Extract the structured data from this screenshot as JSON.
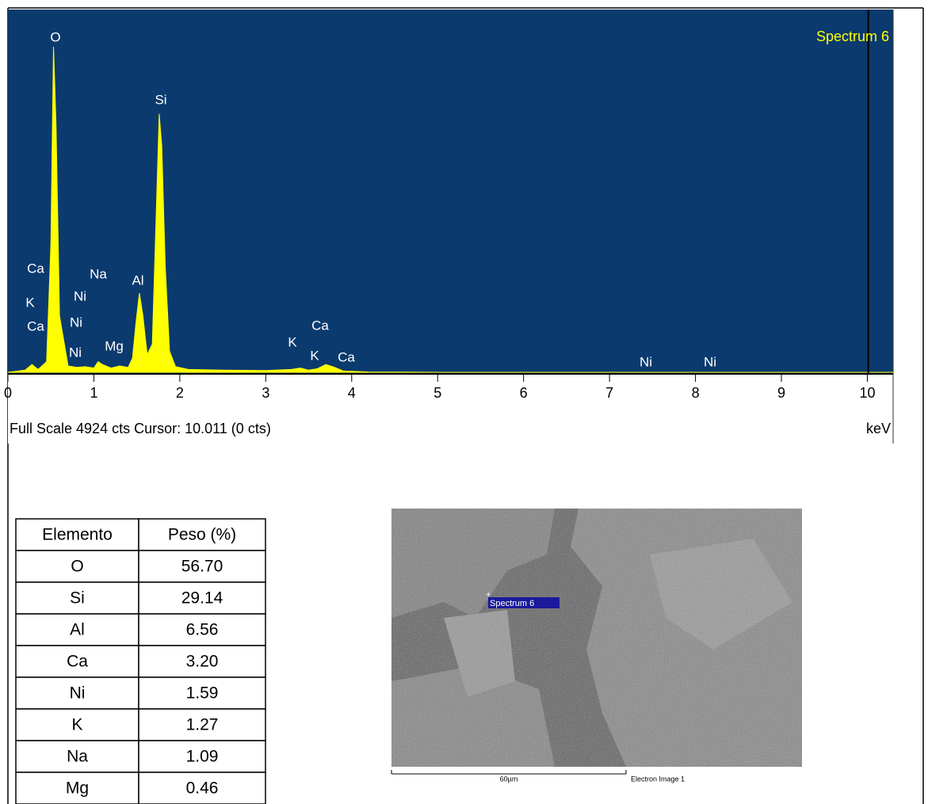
{
  "chart_data": {
    "type": "area",
    "title": "Spectrum 6",
    "xlabel": "keV",
    "footer": "Full Scale 4924 cts Cursor: 10.011  (0 cts)",
    "cursor": 10.011,
    "color": "#ffff00",
    "background": "#0b3a6e",
    "x": [
      0,
      0.2,
      0.28,
      0.35,
      0.45,
      0.5,
      0.53,
      0.56,
      0.6,
      0.7,
      0.8,
      0.9,
      1.0,
      1.05,
      1.1,
      1.2,
      1.3,
      1.4,
      1.45,
      1.49,
      1.53,
      1.57,
      1.62,
      1.68,
      1.72,
      1.76,
      1.79,
      1.83,
      1.88,
      1.95,
      2.1,
      2.5,
      3.0,
      3.3,
      3.4,
      3.5,
      3.6,
      3.7,
      3.8,
      3.9,
      4.0,
      4.2,
      5,
      6,
      7,
      8,
      9,
      10,
      10.3
    ],
    "values": [
      0,
      30,
      110,
      40,
      150,
      1800,
      4600,
      3500,
      800,
      90,
      70,
      80,
      60,
      150,
      110,
      60,
      90,
      70,
      200,
      700,
      1120,
      800,
      250,
      400,
      2000,
      3650,
      3200,
      1500,
      300,
      80,
      40,
      30,
      25,
      40,
      60,
      30,
      50,
      110,
      70,
      20,
      15,
      5,
      0,
      0,
      0,
      0,
      0,
      0,
      0
    ],
    "xlim": [
      0,
      10.3
    ],
    "ylim": [
      0,
      4924
    ],
    "xticks": [
      0,
      1,
      2,
      3,
      4,
      5,
      6,
      7,
      8,
      9,
      10
    ],
    "annotations": [
      "O",
      "Si",
      "Ca",
      "Na",
      "Al",
      "K",
      "Ni",
      "Ni",
      "Ca",
      "Ni",
      "Mg",
      "K",
      "Ca",
      "K",
      "Ca",
      "Ni",
      "Ni"
    ]
  },
  "table": {
    "header": [
      "Elemento",
      "Peso (%)"
    ],
    "rows": [
      [
        "O",
        "56.70"
      ],
      [
        "Si",
        "29.14"
      ],
      [
        "Al",
        "6.56"
      ],
      [
        "Ca",
        "3.20"
      ],
      [
        "Ni",
        "1.59"
      ],
      [
        "K",
        "1.27"
      ],
      [
        "Na",
        "1.09"
      ],
      [
        "Mg",
        "0.46"
      ]
    ]
  },
  "image": {
    "marker": "Spectrum 6",
    "scale": "60µm",
    "caption": "Electron Image 1"
  }
}
